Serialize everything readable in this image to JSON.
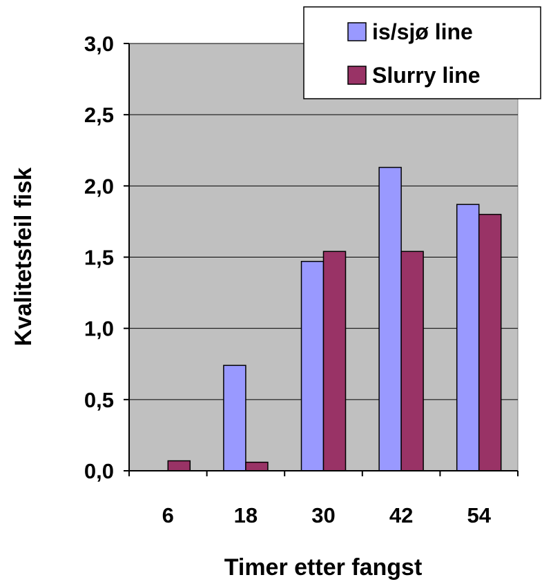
{
  "chart_data": {
    "type": "bar",
    "xlabel": "Timer etter fangst",
    "ylabel": "Kvalitetsfeil fisk",
    "categories": [
      "6",
      "18",
      "30",
      "42",
      "54"
    ],
    "ylim": [
      0,
      3.0
    ],
    "y_ticks": [
      "0,0",
      "0,5",
      "1,0",
      "1,5",
      "2,0",
      "2,5",
      "3,0"
    ],
    "grid": true,
    "legend_position": "top-right",
    "series": [
      {
        "name": "is/sjø line",
        "color": "#9999ff",
        "values": [
          0,
          0.74,
          1.47,
          2.13,
          1.87
        ]
      },
      {
        "name": "Slurry line",
        "color": "#993366",
        "values": [
          0.07,
          0.06,
          1.54,
          1.54,
          1.8
        ]
      }
    ]
  },
  "colors": {
    "plot_background": "#c0c0c0",
    "gridline": "#000000"
  }
}
